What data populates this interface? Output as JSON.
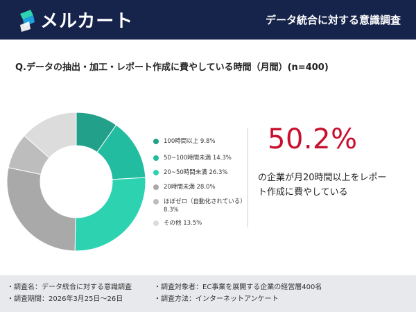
{
  "header": {
    "brand_name": "メルカート",
    "title": "データ統合に対する意識調査"
  },
  "question": "Q.データの抽出・加工・レポート作成に費やしている時間（月間）(n=400)",
  "chart_data": {
    "type": "pie",
    "categories": [
      "100時間以上 9.8%",
      "50~100時間未満 14.3%",
      "20~50時間未満 26.3%",
      "20時間未満 28.0%",
      "ほぼゼロ（自動化されている）8.3%",
      "その他 13.5%"
    ],
    "values": [
      9.8,
      14.3,
      26.3,
      28.0,
      8.3,
      13.5
    ],
    "colors": [
      "#22a08a",
      "#22bca0",
      "#2dd3b1",
      "#a9a9a9",
      "#bdbdbd",
      "#dcdcdc"
    ],
    "legend_position": "right"
  },
  "highlight": {
    "value": "50.2%",
    "text": "の企業が月20時間以上をレポート作成に費やしている",
    "color": "#c8102e"
  },
  "footer": {
    "survey_name": "・調査名：データ統合に対する意識調査",
    "survey_target": "・調査対象者：EC事業を展開する企業の経営層400名",
    "survey_period": "・調査期間：2026年3月25日〜26日",
    "survey_method": "・調査方法：インターネットアンケート"
  }
}
